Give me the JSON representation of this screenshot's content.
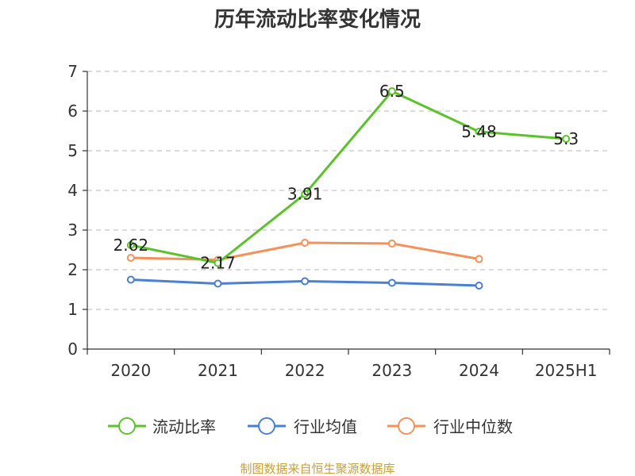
{
  "chart_data": {
    "type": "line",
    "title": "历年流动比率变化情况",
    "xlabel": "",
    "ylabel": "",
    "categories": [
      "2020",
      "2021",
      "2022",
      "2023",
      "2024",
      "2025H1"
    ],
    "ylim": [
      0,
      7
    ],
    "yticks": [
      0,
      1,
      2,
      3,
      4,
      5,
      6,
      7
    ],
    "grid": true,
    "legend_position": "bottom",
    "series": [
      {
        "name": "流动比率",
        "color": "#5cc22c",
        "values": [
          2.62,
          2.17,
          3.91,
          6.5,
          5.48,
          5.3
        ],
        "labels": [
          "2.62",
          "2.17",
          "3.91",
          "6.5",
          "5.48",
          "5.3"
        ]
      },
      {
        "name": "行业均值",
        "color": "#4a7fd6",
        "values": [
          1.75,
          1.65,
          1.71,
          1.67,
          1.6,
          null
        ]
      },
      {
        "name": "行业中位数",
        "color": "#f5915a",
        "values": [
          2.3,
          2.25,
          2.68,
          2.66,
          2.27,
          null
        ]
      }
    ],
    "source": "制图数据来自恒生聚源数据库"
  }
}
